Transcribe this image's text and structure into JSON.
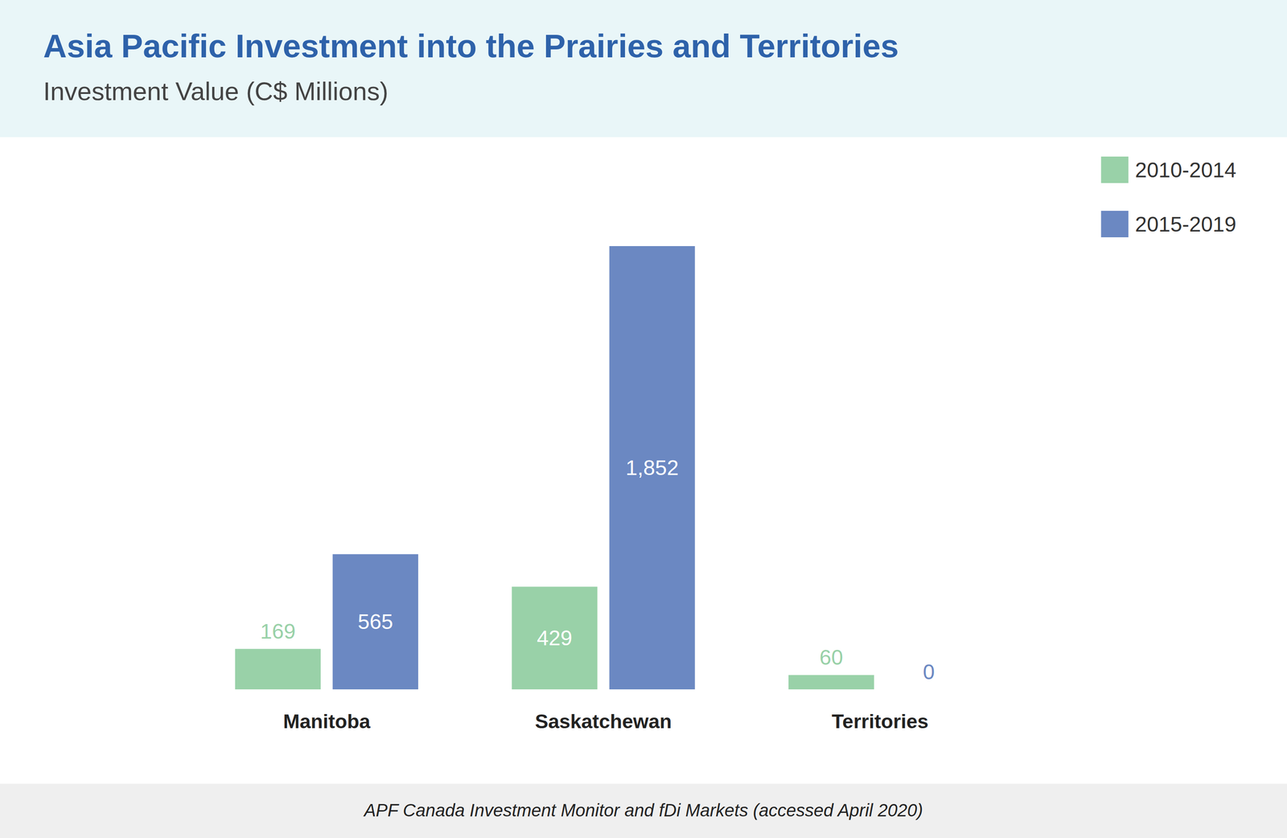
{
  "chart_data": {
    "type": "bar",
    "title": "Asia Pacific Investment into the Prairies and Territories",
    "subtitle": "Investment Value (C$ Millions)",
    "source": "APF Canada Investment Monitor and fDi Markets (accessed April 2020)",
    "categories": [
      "Manitoba",
      "Saskatchewan",
      "Territories"
    ],
    "series": [
      {
        "name": "2010-2014",
        "color": "#99d1a8",
        "values": [
          169,
          429,
          60
        ]
      },
      {
        "name": "2015-2019",
        "color": "#6b88c2",
        "values": [
          565,
          1852,
          0
        ],
        "value_labels": [
          "565",
          "1,852",
          "0"
        ]
      }
    ],
    "ylim": [
      0,
      1852
    ],
    "tick_labels": "x",
    "grid": false,
    "legend": "top-right",
    "data_labels": true
  }
}
